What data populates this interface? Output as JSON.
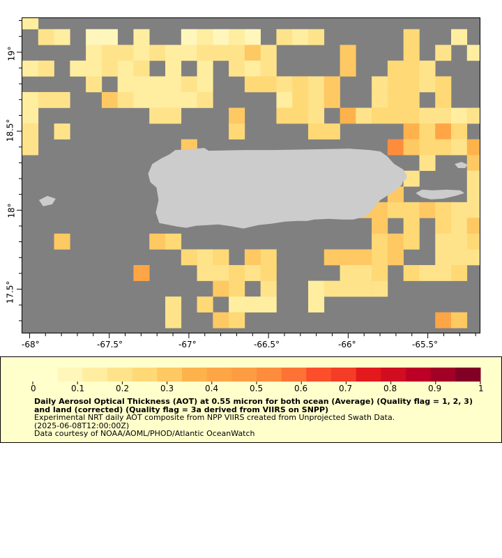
{
  "map": {
    "x_ticks": [
      "-68°",
      "-67.5°",
      "-67°",
      "-66.5°",
      "-66°",
      "-65.5°"
    ],
    "y_ticks": [
      "19°",
      "18.5°",
      "18°",
      "17.5°"
    ],
    "colors": {
      "nodata": "#808080",
      "land": "#cccccc",
      "frame": "#000000"
    },
    "extent": {
      "lon_min": -68.05,
      "lon_max": -65.17,
      "lat_min": 17.22,
      "lat_max": 19.22
    },
    "grid_step_deg": 0.1,
    "aot_cells": [
      [
        -68.0,
        19.2,
        0.15
      ],
      [
        -67.9,
        19.1,
        0.2
      ],
      [
        -67.8,
        19.1,
        0.15
      ],
      [
        -67.6,
        19.1,
        0.1
      ],
      [
        -67.5,
        19.1,
        0.1
      ],
      [
        -67.3,
        19.1,
        0.15
      ],
      [
        -67.0,
        19.1,
        0.1
      ],
      [
        -66.9,
        19.1,
        0.15
      ],
      [
        -66.8,
        19.1,
        0.1
      ],
      [
        -66.7,
        19.1,
        0.15
      ],
      [
        -66.6,
        19.1,
        0.1
      ],
      [
        -66.4,
        19.1,
        0.2
      ],
      [
        -66.3,
        19.1,
        0.15
      ],
      [
        -66.2,
        19.1,
        0.2
      ],
      [
        -65.6,
        19.1,
        0.25
      ],
      [
        -65.3,
        19.1,
        0.15
      ],
      [
        -67.6,
        19.0,
        0.15
      ],
      [
        -67.5,
        19.0,
        0.2
      ],
      [
        -67.4,
        19.0,
        0.2
      ],
      [
        -67.3,
        19.0,
        0.15
      ],
      [
        -67.2,
        19.0,
        0.2
      ],
      [
        -67.1,
        19.0,
        0.15
      ],
      [
        -67.0,
        19.0,
        0.15
      ],
      [
        -66.9,
        19.0,
        0.2
      ],
      [
        -66.8,
        19.0,
        0.2
      ],
      [
        -66.7,
        19.0,
        0.2
      ],
      [
        -66.6,
        19.0,
        0.35
      ],
      [
        -66.5,
        19.0,
        0.2
      ],
      [
        -66.0,
        19.0,
        0.35
      ],
      [
        -65.6,
        19.0,
        0.25
      ],
      [
        -65.4,
        19.0,
        0.2
      ],
      [
        -65.2,
        19.0,
        0.15
      ],
      [
        -68.0,
        18.9,
        0.15
      ],
      [
        -67.9,
        18.9,
        0.2
      ],
      [
        -67.7,
        18.9,
        0.15
      ],
      [
        -67.6,
        18.9,
        0.15
      ],
      [
        -67.5,
        18.9,
        0.2
      ],
      [
        -67.4,
        18.9,
        0.15
      ],
      [
        -67.3,
        18.9,
        0.2
      ],
      [
        -67.1,
        18.9,
        0.15
      ],
      [
        -66.9,
        18.9,
        0.15
      ],
      [
        -66.7,
        18.9,
        0.2
      ],
      [
        -66.6,
        18.9,
        0.15
      ],
      [
        -66.5,
        18.9,
        0.2
      ],
      [
        -66.0,
        18.9,
        0.3
      ],
      [
        -65.7,
        18.9,
        0.25
      ],
      [
        -65.6,
        18.9,
        0.25
      ],
      [
        -65.5,
        18.9,
        0.2
      ],
      [
        -67.6,
        18.8,
        0.2
      ],
      [
        -67.4,
        18.8,
        0.15
      ],
      [
        -67.3,
        18.8,
        0.15
      ],
      [
        -67.2,
        18.8,
        0.15
      ],
      [
        -67.1,
        18.8,
        0.15
      ],
      [
        -67.0,
        18.8,
        0.2
      ],
      [
        -66.9,
        18.8,
        0.15
      ],
      [
        -66.6,
        18.8,
        0.25
      ],
      [
        -66.5,
        18.8,
        0.25
      ],
      [
        -66.4,
        18.8,
        0.2
      ],
      [
        -66.3,
        18.8,
        0.25
      ],
      [
        -66.2,
        18.8,
        0.2
      ],
      [
        -66.1,
        18.8,
        0.3
      ],
      [
        -65.8,
        18.8,
        0.2
      ],
      [
        -65.7,
        18.8,
        0.25
      ],
      [
        -65.6,
        18.8,
        0.25
      ],
      [
        -65.5,
        18.8,
        0.2
      ],
      [
        -65.4,
        18.8,
        0.25
      ],
      [
        -68.0,
        18.7,
        0.15
      ],
      [
        -67.9,
        18.7,
        0.2
      ],
      [
        -67.8,
        18.7,
        0.2
      ],
      [
        -67.5,
        18.7,
        0.3
      ],
      [
        -67.4,
        18.7,
        0.2
      ],
      [
        -67.3,
        18.7,
        0.15
      ],
      [
        -67.2,
        18.7,
        0.15
      ],
      [
        -67.1,
        18.7,
        0.15
      ],
      [
        -67.0,
        18.7,
        0.15
      ],
      [
        -66.9,
        18.7,
        0.2
      ],
      [
        -66.4,
        18.7,
        0.15
      ],
      [
        -66.3,
        18.7,
        0.25
      ],
      [
        -66.2,
        18.7,
        0.2
      ],
      [
        -66.1,
        18.7,
        0.3
      ],
      [
        -65.8,
        18.7,
        0.2
      ],
      [
        -65.7,
        18.7,
        0.25
      ],
      [
        -65.6,
        18.7,
        0.25
      ],
      [
        -65.4,
        18.7,
        0.25
      ],
      [
        -68.0,
        18.6,
        0.15
      ],
      [
        -67.2,
        18.6,
        0.2
      ],
      [
        -67.1,
        18.6,
        0.2
      ],
      [
        -66.7,
        18.6,
        0.3
      ],
      [
        -66.4,
        18.6,
        0.25
      ],
      [
        -66.3,
        18.6,
        0.25
      ],
      [
        -66.2,
        18.6,
        0.2
      ],
      [
        -66.0,
        18.6,
        0.4
      ],
      [
        -65.9,
        18.6,
        0.2
      ],
      [
        -65.8,
        18.6,
        0.25
      ],
      [
        -65.7,
        18.6,
        0.25
      ],
      [
        -65.6,
        18.6,
        0.25
      ],
      [
        -65.5,
        18.6,
        0.2
      ],
      [
        -65.4,
        18.6,
        0.2
      ],
      [
        -65.3,
        18.6,
        0.15
      ],
      [
        -65.2,
        18.6,
        0.2
      ],
      [
        -68.0,
        18.5,
        0.2
      ],
      [
        -67.8,
        18.5,
        0.2
      ],
      [
        -66.7,
        18.5,
        0.25
      ],
      [
        -66.2,
        18.5,
        0.25
      ],
      [
        -66.1,
        18.5,
        0.25
      ],
      [
        -65.6,
        18.5,
        0.4
      ],
      [
        -65.5,
        18.5,
        0.25
      ],
      [
        -65.4,
        18.5,
        0.45
      ],
      [
        -65.3,
        18.5,
        0.25
      ],
      [
        -68.0,
        18.4,
        0.2
      ],
      [
        -67.0,
        18.4,
        0.35
      ],
      [
        -65.7,
        18.4,
        0.55
      ],
      [
        -65.6,
        18.4,
        0.3
      ],
      [
        -65.5,
        18.4,
        0.25
      ],
      [
        -65.4,
        18.4,
        0.25
      ],
      [
        -65.3,
        18.4,
        0.2
      ],
      [
        -65.2,
        18.4,
        0.4
      ],
      [
        -65.5,
        18.3,
        0.2
      ],
      [
        -65.2,
        18.3,
        0.3
      ],
      [
        -65.6,
        18.2,
        0.2
      ],
      [
        -65.2,
        18.2,
        0.2
      ],
      [
        -65.7,
        18.1,
        0.35
      ],
      [
        -65.2,
        18.1,
        0.2
      ],
      [
        -66.0,
        18.0,
        0.4
      ],
      [
        -65.9,
        18.0,
        0.35
      ],
      [
        -65.8,
        18.0,
        0.3
      ],
      [
        -65.7,
        18.0,
        0.25
      ],
      [
        -65.6,
        18.0,
        0.25
      ],
      [
        -65.5,
        18.0,
        0.3
      ],
      [
        -65.4,
        18.0,
        0.25
      ],
      [
        -65.3,
        18.0,
        0.2
      ],
      [
        -65.2,
        18.0,
        0.2
      ],
      [
        -65.8,
        17.9,
        0.3
      ],
      [
        -65.6,
        17.9,
        0.25
      ],
      [
        -65.4,
        17.9,
        0.25
      ],
      [
        -65.3,
        17.9,
        0.2
      ],
      [
        -65.2,
        17.9,
        0.3
      ],
      [
        -67.8,
        17.8,
        0.3
      ],
      [
        -67.2,
        17.8,
        0.3
      ],
      [
        -67.1,
        17.8,
        0.25
      ],
      [
        -65.8,
        17.8,
        0.25
      ],
      [
        -65.7,
        17.8,
        0.3
      ],
      [
        -65.6,
        17.8,
        0.25
      ],
      [
        -65.4,
        17.8,
        0.2
      ],
      [
        -65.3,
        17.8,
        0.2
      ],
      [
        -65.2,
        17.8,
        0.25
      ],
      [
        -67.0,
        17.7,
        0.25
      ],
      [
        -66.9,
        17.7,
        0.2
      ],
      [
        -66.8,
        17.7,
        0.25
      ],
      [
        -66.6,
        17.7,
        0.3
      ],
      [
        -66.5,
        17.7,
        0.25
      ],
      [
        -66.1,
        17.7,
        0.3
      ],
      [
        -66.0,
        17.7,
        0.3
      ],
      [
        -65.9,
        17.7,
        0.3
      ],
      [
        -65.8,
        17.7,
        0.25
      ],
      [
        -65.7,
        17.7,
        0.3
      ],
      [
        -65.4,
        17.7,
        0.2
      ],
      [
        -65.3,
        17.7,
        0.2
      ],
      [
        -65.2,
        17.7,
        0.2
      ],
      [
        -67.3,
        17.6,
        0.45
      ],
      [
        -66.9,
        17.6,
        0.2
      ],
      [
        -66.8,
        17.6,
        0.2
      ],
      [
        -66.7,
        17.6,
        0.25
      ],
      [
        -66.6,
        17.6,
        0.2
      ],
      [
        -66.5,
        17.6,
        0.25
      ],
      [
        -66.0,
        17.6,
        0.2
      ],
      [
        -65.9,
        17.6,
        0.2
      ],
      [
        -65.8,
        17.6,
        0.25
      ],
      [
        -65.6,
        17.6,
        0.25
      ],
      [
        -65.5,
        17.6,
        0.2
      ],
      [
        -65.4,
        17.6,
        0.2
      ],
      [
        -65.3,
        17.6,
        0.25
      ],
      [
        -66.8,
        17.5,
        0.3
      ],
      [
        -66.7,
        17.5,
        0.25
      ],
      [
        -66.5,
        17.5,
        0.2
      ],
      [
        -66.2,
        17.5,
        0.15
      ],
      [
        -66.1,
        17.5,
        0.2
      ],
      [
        -66.0,
        17.5,
        0.2
      ],
      [
        -65.9,
        17.5,
        0.2
      ],
      [
        -65.8,
        17.5,
        0.2
      ],
      [
        -67.1,
        17.4,
        0.2
      ],
      [
        -66.9,
        17.4,
        0.25
      ],
      [
        -66.7,
        17.4,
        0.15
      ],
      [
        -66.6,
        17.4,
        0.15
      ],
      [
        -66.5,
        17.4,
        0.15
      ],
      [
        -66.2,
        17.4,
        0.15
      ],
      [
        -67.1,
        17.3,
        0.2
      ],
      [
        -66.8,
        17.3,
        0.3
      ],
      [
        -66.7,
        17.3,
        0.25
      ],
      [
        -65.4,
        17.3,
        0.45
      ],
      [
        -65.3,
        17.3,
        0.35
      ]
    ]
  },
  "legend": {
    "colorbar_ticks": [
      "0",
      "0.1",
      "0.2",
      "0.3",
      "0.4",
      "0.5",
      "0.6",
      "0.7",
      "0.8",
      "0.9",
      "1"
    ],
    "colorbar_colors": [
      "#ffffcc",
      "#fff6bb",
      "#ffeda0",
      "#fee38b",
      "#fed976",
      "#fec863",
      "#feb24c",
      "#fea546",
      "#fd9d43",
      "#fd8d3c",
      "#fc7335",
      "#fc4e2a",
      "#f43d25",
      "#e31a1c",
      "#d00d21",
      "#bd0026",
      "#a30026",
      "#800026"
    ],
    "title": "Daily Aerosol Optical Thickness (AOT) at 0.55 micron for both ocean (Average) (Quality flag = 1, 2, 3) and land (corrected) (Quality flag = 3a derived from VIIRS on SNPP)",
    "line1": "Experimental NRT daily AOT composite from NPP VIIRS created from Unprojected Swath Data.",
    "line2": "(2025-06-08T12:00:00Z)",
    "line3": "Data courtesy of NOAA/AOML/PHOD/Atlantic OceanWatch"
  }
}
